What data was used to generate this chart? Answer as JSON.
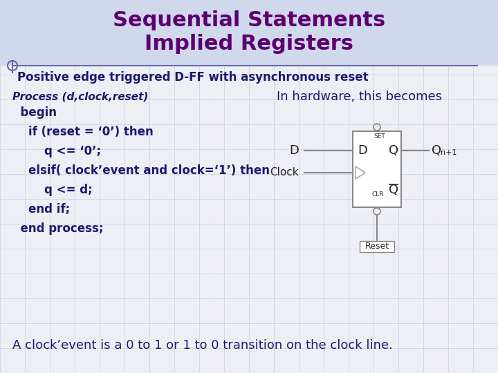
{
  "bg_color": "#eeeef5",
  "grid_color": "#c8cfe0",
  "title_line1": "Sequential Statements",
  "title_line2": "Implied Registers",
  "title_color": "#5c0070",
  "subtitle": "Positive edge triggered D-FF with asynchronous reset",
  "subtitle_color": "#1a1a6e",
  "code_label": "Process (d,clock,reset)",
  "code_lines": [
    "  begin",
    "    if (reset = ‘0’) then",
    "        q <= ‘0’;",
    "    elsif( clock’event and clock=‘1’) then",
    "        q <= d;",
    "    end if;",
    "  end process;"
  ],
  "code_color": "#1a1a6e",
  "code_label_color": "#1a1a6e",
  "hardware_label": "In hardware, this becomes",
  "hardware_label_color": "#1a1a6e",
  "bottom_text": "A clock’event is a 0 to 1 or 1 to 0 transition on the clock line.",
  "bottom_text_color": "#1a1a6e",
  "dff_box_edge": "#888888",
  "dff_text_color": "#222222",
  "divider_color": "#6666aa",
  "header_bg": "#d0d8ec"
}
